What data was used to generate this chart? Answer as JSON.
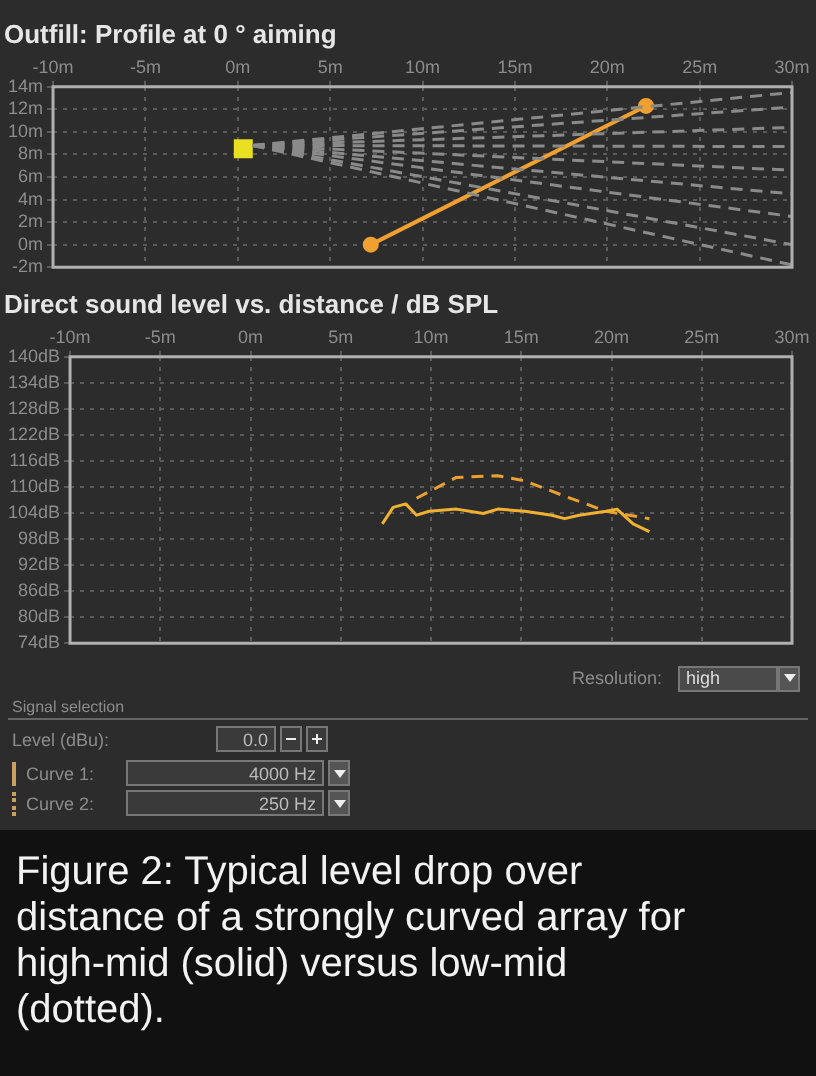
{
  "chart_data": [
    {
      "type": "line",
      "title": "Outfill: Profile at 0 ° aiming",
      "grid": true,
      "xlim": [
        -10,
        30
      ],
      "xticks": [
        {
          "value": -10,
          "label": "-10m"
        },
        {
          "value": -5,
          "label": "-5m"
        },
        {
          "value": 0,
          "label": "0m"
        },
        {
          "value": 5,
          "label": "5m"
        },
        {
          "value": 10,
          "label": "10m"
        },
        {
          "value": 15,
          "label": "15m"
        },
        {
          "value": 20,
          "label": "20m"
        },
        {
          "value": 25,
          "label": "25m"
        },
        {
          "value": 30,
          "label": "30m"
        }
      ],
      "ylim": [
        -2,
        14
      ],
      "yticks": [
        {
          "value": 14,
          "label": "14m"
        },
        {
          "value": 12,
          "label": "12m"
        },
        {
          "value": 10,
          "label": "10m"
        },
        {
          "value": 8,
          "label": "8m"
        },
        {
          "value": 6,
          "label": "6m"
        },
        {
          "value": 4,
          "label": "4m"
        },
        {
          "value": 2,
          "label": "2m"
        },
        {
          "value": 0,
          "label": "0m"
        },
        {
          "value": -2,
          "label": "-2m"
        }
      ],
      "series": [
        {
          "type": "line",
          "color": "#8a8a8a",
          "line_style": "dashed",
          "marker": "none",
          "x": [
            0.8,
            30
          ],
          "values": [
            8.8,
            13.5
          ]
        },
        {
          "type": "line",
          "color": "#8a8a8a",
          "line_style": "dashed",
          "marker": "none",
          "x": [
            0.8,
            30
          ],
          "values": [
            8.8,
            12.2
          ]
        },
        {
          "type": "line",
          "color": "#8a8a8a",
          "line_style": "dashed",
          "marker": "none",
          "x": [
            0.8,
            30
          ],
          "values": [
            8.8,
            10.4
          ]
        },
        {
          "type": "line",
          "color": "#8a8a8a",
          "line_style": "dashed",
          "marker": "none",
          "x": [
            0.8,
            30
          ],
          "values": [
            8.8,
            8.7
          ]
        },
        {
          "type": "line",
          "color": "#8a8a8a",
          "line_style": "dashed",
          "marker": "none",
          "x": [
            0.8,
            30
          ],
          "values": [
            8.8,
            6.6
          ]
        },
        {
          "type": "line",
          "color": "#8a8a8a",
          "line_style": "dashed",
          "marker": "none",
          "x": [
            0.8,
            30
          ],
          "values": [
            8.8,
            4.5
          ]
        },
        {
          "type": "line",
          "color": "#8a8a8a",
          "line_style": "dashed",
          "marker": "none",
          "x": [
            0.8,
            30
          ],
          "values": [
            8.8,
            2.5
          ]
        },
        {
          "type": "line",
          "color": "#8a8a8a",
          "line_style": "dashed",
          "marker": "none",
          "x": [
            0.8,
            30
          ],
          "values": [
            8.8,
            0
          ]
        },
        {
          "type": "line",
          "color": "#8a8a8a",
          "line_style": "dashed",
          "marker": "none",
          "x": [
            0.8,
            30
          ],
          "values": [
            8.8,
            -1.8
          ]
        },
        {
          "type": "line",
          "color": "#f0a030",
          "line_style": "solid",
          "marker": "circle",
          "x": [
            7.2,
            22.1
          ],
          "values": [
            0,
            12.3
          ]
        },
        {
          "type": "scatter",
          "color": "#e8e020",
          "marker": "square",
          "x": [
            0.3
          ],
          "values": [
            8.5
          ]
        }
      ]
    },
    {
      "type": "line",
      "title": "Direct sound level vs. distance / dB SPL",
      "grid": true,
      "xlim": [
        -10,
        30
      ],
      "xticks": [
        {
          "value": -10,
          "label": "-10m"
        },
        {
          "value": -5,
          "label": "-5m"
        },
        {
          "value": 0,
          "label": "0m"
        },
        {
          "value": 5,
          "label": "5m"
        },
        {
          "value": 10,
          "label": "10m"
        },
        {
          "value": 15,
          "label": "15m"
        },
        {
          "value": 20,
          "label": "20m"
        },
        {
          "value": 25,
          "label": "25m"
        },
        {
          "value": 30,
          "label": "30m"
        }
      ],
      "ylim": [
        74,
        140
      ],
      "yticks": [
        {
          "value": 140,
          "label": "140dB"
        },
        {
          "value": 134,
          "label": "134dB"
        },
        {
          "value": 128,
          "label": "128dB"
        },
        {
          "value": 122,
          "label": "122dB"
        },
        {
          "value": 116,
          "label": "116dB"
        },
        {
          "value": 110,
          "label": "110dB"
        },
        {
          "value": 104,
          "label": "104dB"
        },
        {
          "value": 98,
          "label": "98dB"
        },
        {
          "value": 92,
          "label": "92dB"
        },
        {
          "value": 86,
          "label": "86dB"
        },
        {
          "value": 80,
          "label": "80dB"
        },
        {
          "value": 74,
          "label": "74dB"
        }
      ],
      "series": [
        {
          "type": "line",
          "color": "#f0b030",
          "line_style": "solid",
          "marker": "none",
          "x": [
            7.3,
            7.9,
            8.6,
            9.2,
            9.9,
            11.4,
            12.9,
            13.7,
            15.2,
            16.7,
            17.4,
            18.2,
            19.7,
            20.3,
            21.2,
            22.1
          ],
          "values": [
            101.5,
            105.3,
            106.1,
            103.5,
            104.4,
            104.9,
            103.9,
            104.9,
            104.4,
            103.5,
            102.7,
            103.5,
            104.4,
            104.9,
            101.5,
            99.7
          ]
        },
        {
          "type": "line",
          "color": "#e8a030",
          "line_style": "dashed",
          "marker": "none",
          "x": [
            9.2,
            11.4,
            13.7,
            15.2,
            17.4,
            19.7,
            22.1
          ],
          "values": [
            107.4,
            112.2,
            112.6,
            111.4,
            107.9,
            104.4,
            102.7
          ]
        }
      ]
    },
    {
      "type": "other",
      "annotations": [
        "Resolution:",
        "high",
        "Signal selection",
        "Level (dBu):",
        "0.0",
        "Curve 1:",
        "4000 Hz",
        "Curve 2:",
        "250 Hz",
        "Figure 2: Typical level drop over distance of a strongly curved array for high-mid (solid) versus low-mid (dotted)."
      ]
    }
  ]
}
